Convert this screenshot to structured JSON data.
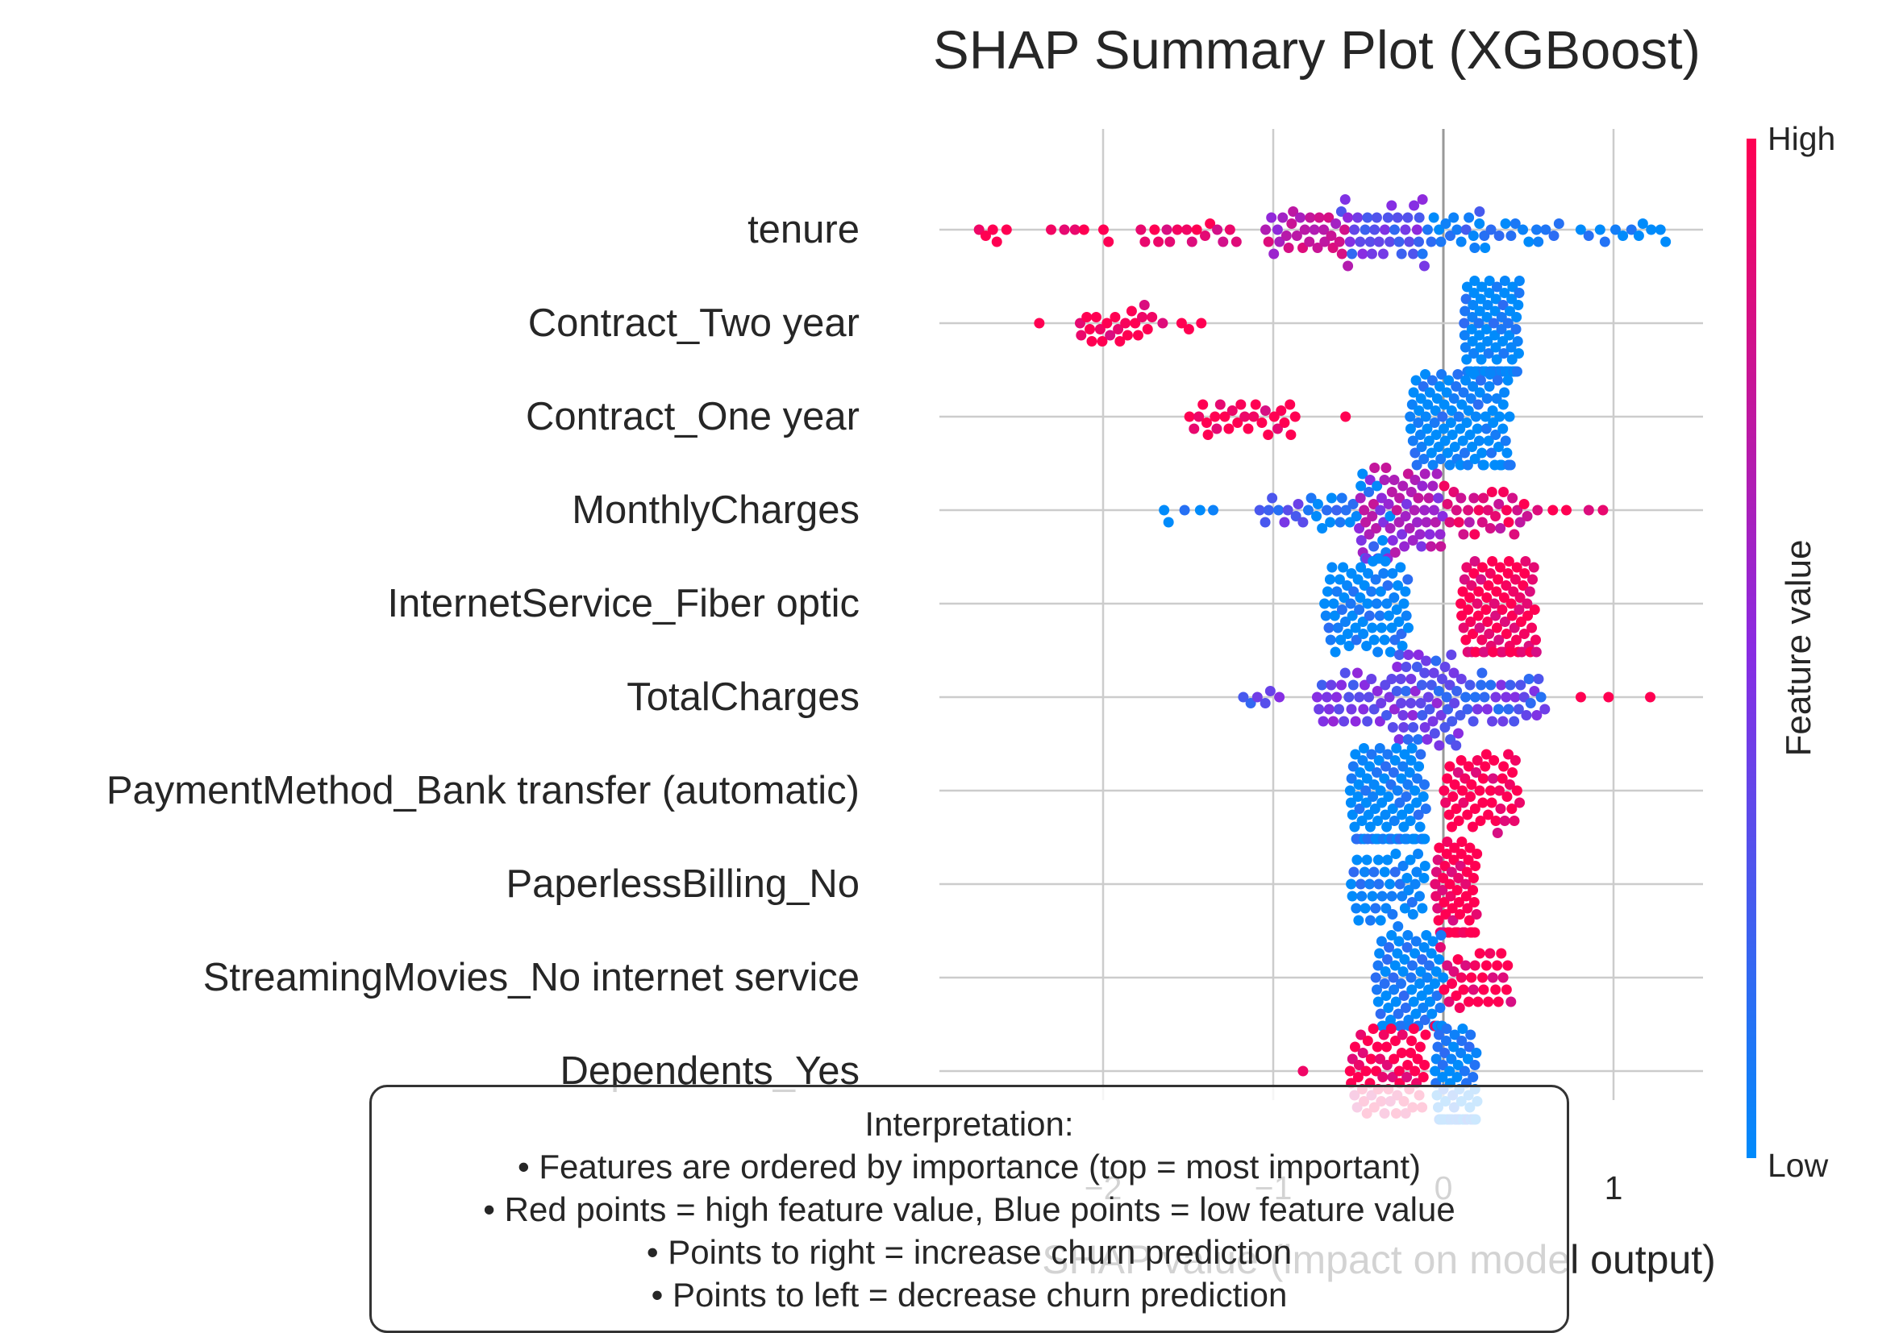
{
  "chart_data": {
    "type": "scatter",
    "subtype": "shap-beeswarm",
    "title": "SHAP Summary Plot (XGBoost)",
    "xlabel": "SHAP value (impact on model output)",
    "ylabel": "",
    "xlim": [
      -3.0,
      1.5
    ],
    "xticks": [
      {
        "value": -2,
        "label": "−2"
      },
      {
        "value": -1,
        "label": "−1"
      },
      {
        "value": 0,
        "label": "0"
      },
      {
        "value": 1,
        "label": "1"
      }
    ],
    "grid": true,
    "colorbar": {
      "title": "Feature value",
      "high_label": "High",
      "low_label": "Low",
      "high_color": "#ff0052",
      "mid_color": "#8a2be2",
      "low_color": "#008bfb"
    },
    "features": [
      {
        "name": "tenure",
        "groups": [
          {
            "range": [
              -2.75,
              -2.55
            ],
            "n": 5,
            "color": 1.0
          },
          {
            "range": [
              -2.35,
              -1.9
            ],
            "n": 6,
            "color": 1.0
          },
          {
            "range": [
              -1.8,
              -1.2
            ],
            "n": 16,
            "color": 0.95
          },
          {
            "range": [
              -1.05,
              -0.55
            ],
            "n": 30,
            "color": 0.7
          },
          {
            "range": [
              -0.6,
              -0.1
            ],
            "n": 34,
            "color": 0.35
          },
          {
            "range": [
              -0.15,
              0.25
            ],
            "n": 18,
            "color": 0.1
          },
          {
            "range": [
              0.2,
              0.7
            ],
            "n": 14,
            "color": 0.0
          },
          {
            "range": [
              0.8,
              1.35
            ],
            "n": 12,
            "color": 0.0
          }
        ]
      },
      {
        "name": "Contract_Two year",
        "groups": [
          {
            "range": [
              -2.4,
              -2.35
            ],
            "n": 1,
            "color": 1.0
          },
          {
            "range": [
              -2.15,
              -1.7
            ],
            "n": 22,
            "color": 1.0
          },
          {
            "range": [
              -1.65,
              -1.4
            ],
            "n": 4,
            "color": 1.0
          },
          {
            "range": [
              0.12,
              0.45
            ],
            "n": 110,
            "color": 0.0
          }
        ]
      },
      {
        "name": "Contract_One year",
        "groups": [
          {
            "range": [
              -1.5,
              -0.85
            ],
            "n": 28,
            "color": 1.0
          },
          {
            "range": [
              -0.6,
              -0.55
            ],
            "n": 1,
            "color": 1.0
          },
          {
            "range": [
              -0.2,
              0.4
            ],
            "n": 100,
            "color": 0.0
          }
        ]
      },
      {
        "name": "MonthlyCharges",
        "groups": [
          {
            "range": [
              -1.7,
              -1.3
            ],
            "n": 5,
            "color": 0.0
          },
          {
            "range": [
              -1.1,
              -0.8
            ],
            "n": 10,
            "color": 0.3
          },
          {
            "range": [
              -0.8,
              -0.3
            ],
            "n": 25,
            "color": 0.05
          },
          {
            "range": [
              -0.5,
              0.0
            ],
            "n": 60,
            "color": 0.6
          },
          {
            "range": [
              0.0,
              0.5
            ],
            "n": 30,
            "color": 0.85
          },
          {
            "range": [
              0.5,
              1.0
            ],
            "n": 5,
            "color": 1.0
          }
        ]
      },
      {
        "name": "InternetService_Fiber optic",
        "groups": [
          {
            "range": [
              -0.7,
              -0.2
            ],
            "n": 70,
            "color": 0.0
          },
          {
            "range": [
              0.1,
              0.55
            ],
            "n": 80,
            "color": 1.0
          }
        ]
      },
      {
        "name": "TotalCharges",
        "groups": [
          {
            "range": [
              -1.2,
              -0.95
            ],
            "n": 6,
            "color": 0.35
          },
          {
            "range": [
              -0.75,
              0.1
            ],
            "n": 60,
            "color": 0.4
          },
          {
            "range": [
              -0.3,
              0.6
            ],
            "n": 60,
            "color": 0.3
          },
          {
            "range": [
              0.8,
              1.25
            ],
            "n": 3,
            "color": 1.0
          }
        ]
      },
      {
        "name": "PaymentMethod_Bank transfer (automatic)",
        "groups": [
          {
            "range": [
              -0.55,
              -0.1
            ],
            "n": 90,
            "color": 0.0
          },
          {
            "range": [
              0.0,
              0.45
            ],
            "n": 50,
            "color": 1.0
          }
        ]
      },
      {
        "name": "PaperlessBilling_No",
        "groups": [
          {
            "range": [
              -0.55,
              -0.1
            ],
            "n": 45,
            "color": 0.0
          },
          {
            "range": [
              -0.05,
              0.2
            ],
            "n": 60,
            "color": 1.0
          }
        ]
      },
      {
        "name": "StreamingMovies_No internet service",
        "groups": [
          {
            "range": [
              -0.4,
              0.0
            ],
            "n": 70,
            "color": 0.0
          },
          {
            "range": [
              -0.05,
              0.4
            ],
            "n": 35,
            "color": 1.0
          }
        ]
      },
      {
        "name": "Dependents_Yes",
        "groups": [
          {
            "range": [
              -0.85,
              -0.8
            ],
            "n": 1,
            "color": 1.0
          },
          {
            "range": [
              -0.55,
              -0.1
            ],
            "n": 60,
            "color": 1.0
          },
          {
            "range": [
              -0.05,
              0.2
            ],
            "n": 70,
            "color": 0.0
          }
        ]
      }
    ]
  },
  "interpretation": {
    "heading": "Interpretation:",
    "lines": [
      "• Features are ordered by importance (top = most important)",
      "• Red points = high feature value, Blue points = low feature value",
      "• Points to right = increase churn prediction",
      "• Points to left = decrease churn prediction"
    ]
  }
}
